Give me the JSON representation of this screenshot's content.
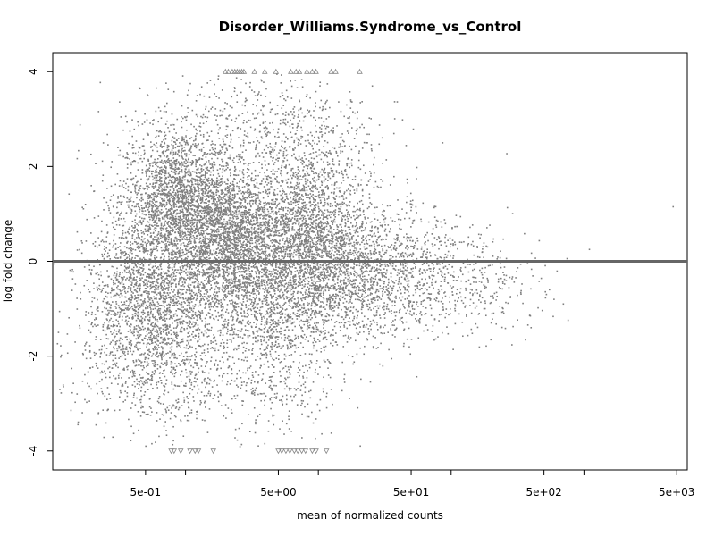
{
  "chart_data": {
    "type": "scatter",
    "title": "Disorder_Williams.Syndrome_vs_Control",
    "xlabel": "mean of normalized counts",
    "ylabel": "log fold change",
    "x_scale": "log10",
    "xlim": [
      0.1,
      6000
    ],
    "ylim": [
      -4.4,
      4.4
    ],
    "x_ticks": [
      {
        "value": 0.5,
        "label": "5e-01"
      },
      {
        "value": 5,
        "label": "5e+00"
      },
      {
        "value": 50,
        "label": "5e+01"
      },
      {
        "value": 500,
        "label": "5e+02"
      },
      {
        "value": 5000,
        "label": "5e+03"
      }
    ],
    "x_minor_ticks": [
      1,
      10,
      100,
      1000
    ],
    "y_ticks": [
      {
        "value": -4,
        "label": "-4"
      },
      {
        "value": -2,
        "label": "-2"
      },
      {
        "value": 0,
        "label": "0"
      },
      {
        "value": 2,
        "label": "2"
      },
      {
        "value": 4,
        "label": "4"
      }
    ],
    "hline": {
      "value": 0,
      "color": "#666666"
    },
    "point_color": "#7f7f7f",
    "grid": false,
    "series": [
      {
        "points_sampled": [
          [
            1.85,
            1.1
          ],
          [
            4.8,
            2.5
          ],
          [
            2.1,
            4.0
          ],
          [
            0.35,
            0.2
          ],
          [
            0.45,
            0.5
          ],
          [
            0.6,
            1.9
          ],
          [
            0.95,
            1.4
          ],
          [
            1.2,
            2.1
          ],
          [
            1.5,
            0.9
          ],
          [
            2.4,
            0.5
          ],
          [
            3.1,
            0.2
          ],
          [
            4.2,
            -0.4
          ],
          [
            5.5,
            -0.7
          ],
          [
            6.8,
            1.6
          ],
          [
            7.5,
            0.4
          ],
          [
            9.2,
            0.0
          ],
          [
            11.0,
            -0.3
          ],
          [
            14.0,
            0.6
          ],
          [
            18.0,
            -0.5
          ],
          [
            25.0,
            -0.2
          ],
          [
            32.0,
            0.9
          ],
          [
            45.0,
            -0.8
          ],
          [
            60.0,
            0.3
          ],
          [
            85.0,
            -0.6
          ],
          [
            120.0,
            0.4
          ],
          [
            180.0,
            -1.0
          ],
          [
            260.0,
            -0.3
          ],
          [
            400.0,
            -1.4
          ],
          [
            550.0,
            -0.6
          ],
          [
            700.0,
            -0.9
          ],
          [
            1100.0,
            0.25
          ],
          [
            4700.0,
            1.15
          ]
        ]
      }
    ],
    "clipped_high": [
      {
        "x": 2.0,
        "y": 4.0
      },
      {
        "x": 2.1,
        "y": 4.0
      },
      {
        "x": 2.25,
        "y": 4.0
      },
      {
        "x": 2.35,
        "y": 4.0
      },
      {
        "x": 2.45,
        "y": 4.0
      },
      {
        "x": 2.55,
        "y": 4.0
      },
      {
        "x": 2.65,
        "y": 4.0
      },
      {
        "x": 2.75,
        "y": 4.0
      },
      {
        "x": 3.3,
        "y": 4.0
      },
      {
        "x": 3.95,
        "y": 4.0
      },
      {
        "x": 4.8,
        "y": 4.0
      },
      {
        "x": 6.2,
        "y": 4.0
      },
      {
        "x": 6.8,
        "y": 4.0
      },
      {
        "x": 7.2,
        "y": 4.0
      },
      {
        "x": 8.2,
        "y": 4.0
      },
      {
        "x": 9.0,
        "y": 4.0
      },
      {
        "x": 9.6,
        "y": 4.0
      },
      {
        "x": 12.5,
        "y": 4.0
      },
      {
        "x": 13.5,
        "y": 4.0
      },
      {
        "x": 20.5,
        "y": 4.0
      }
    ],
    "clipped_low": [
      {
        "x": 0.78,
        "y": -4.0
      },
      {
        "x": 0.82,
        "y": -4.0
      },
      {
        "x": 0.92,
        "y": -4.0
      },
      {
        "x": 1.08,
        "y": -4.0
      },
      {
        "x": 1.18,
        "y": -4.0
      },
      {
        "x": 1.25,
        "y": -4.0
      },
      {
        "x": 1.62,
        "y": -4.0
      },
      {
        "x": 5.0,
        "y": -4.0
      },
      {
        "x": 5.3,
        "y": -4.0
      },
      {
        "x": 5.7,
        "y": -4.0
      },
      {
        "x": 6.1,
        "y": -4.0
      },
      {
        "x": 6.6,
        "y": -4.0
      },
      {
        "x": 7.0,
        "y": -4.0
      },
      {
        "x": 7.5,
        "y": -4.0
      },
      {
        "x": 8.0,
        "y": -4.0
      },
      {
        "x": 9.0,
        "y": -4.0
      },
      {
        "x": 9.6,
        "y": -4.0
      },
      {
        "x": 11.5,
        "y": -4.0
      }
    ]
  }
}
